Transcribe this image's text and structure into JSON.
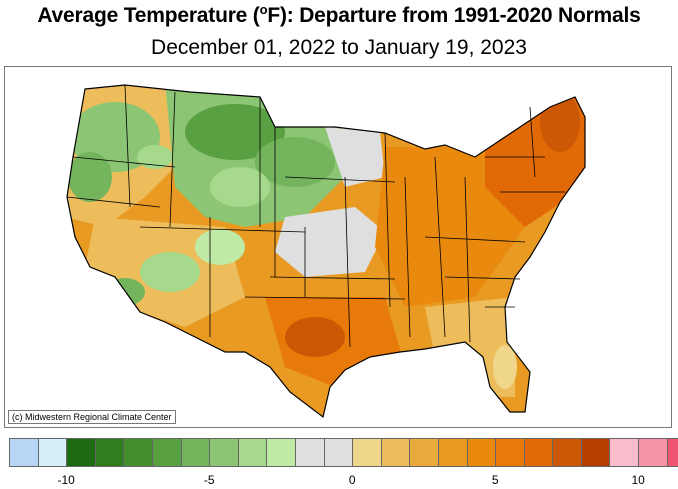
{
  "header": {
    "title_prefix": "Average Temperature (",
    "title_degree": "o",
    "title_suffix": "F): Departure from 1991-2020 Normals",
    "subtitle": "December 01, 2022 to January 19, 2023"
  },
  "credit": "(c) Midwestern Regional Climate Center",
  "legend": {
    "colors": [
      "#b7d6f5",
      "#d7eefb",
      "#1c6b10",
      "#2f7d1e",
      "#428f2c",
      "#59a043",
      "#74b45c",
      "#8cc573",
      "#a6d98b",
      "#c0eba6",
      "#dfdfdf",
      "#dfdfdf",
      "#f0d68a",
      "#edbd5c",
      "#eaa93b",
      "#e99a22",
      "#e98a0f",
      "#e77a08",
      "#e16a06",
      "#cc5805",
      "#b63e00",
      "#fbbccb",
      "#f592a8",
      "#ef5470"
    ],
    "ticks": [
      {
        "label": "-10",
        "value": -10
      },
      {
        "label": "-5",
        "value": -5
      },
      {
        "label": "0",
        "value": 0
      },
      {
        "label": "5",
        "value": 5
      },
      {
        "label": "10",
        "value": 10
      }
    ]
  },
  "regions": {
    "pacific_northwest": "mixed-green-orange",
    "northern_rockies_plains": "green",
    "southwest": "mixed-orange-green",
    "central_plains": "gray",
    "south_texas_gulf": "deep-orange",
    "midwest_east": "orange",
    "northeast": "dark-orange"
  }
}
